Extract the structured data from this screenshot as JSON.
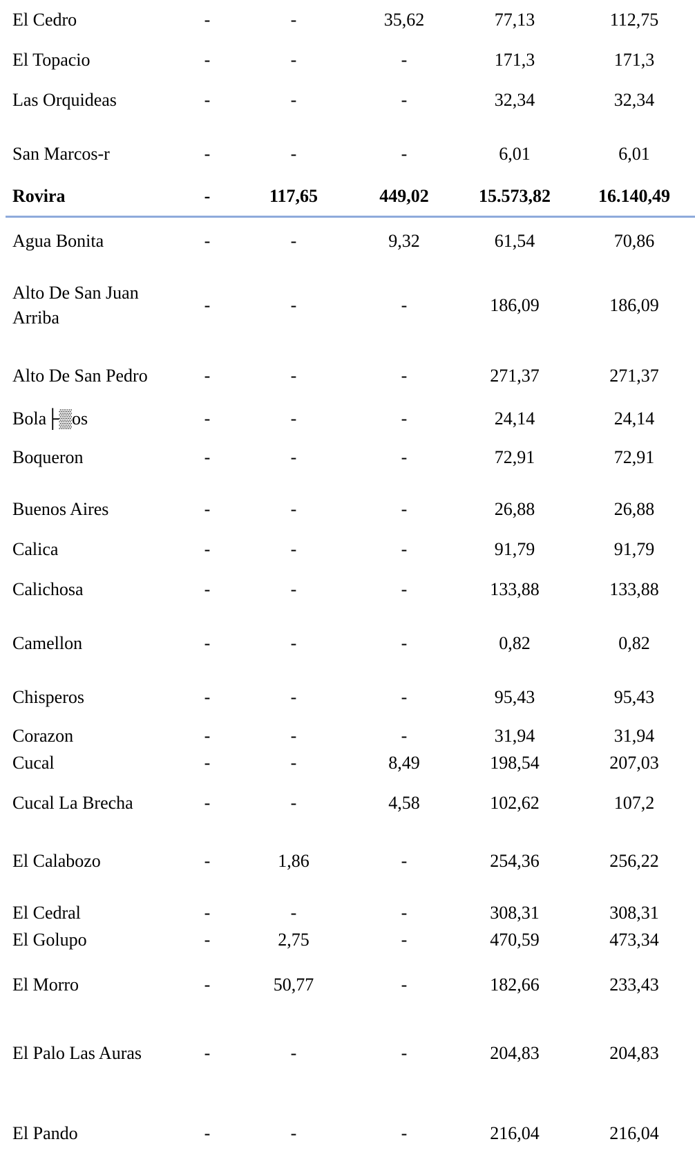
{
  "table": {
    "rows": [
      {
        "name": "El Cedro",
        "values": [
          "-",
          "-",
          "35,62",
          "77,13",
          "112,75"
        ]
      },
      {
        "name": "El Topacio",
        "values": [
          "-",
          "-",
          "-",
          "171,3",
          "171,3"
        ]
      },
      {
        "name": "Las Orquideas",
        "values": [
          "-",
          "-",
          "-",
          "32,34",
          "32,34"
        ]
      },
      {
        "name": "San Marcos-r",
        "values": [
          "-",
          "-",
          "-",
          "6,01",
          "6,01"
        ]
      },
      {
        "name": "Rovira",
        "values": [
          "-",
          "117,65",
          "449,02",
          "15.573,82",
          "16.140,49"
        ],
        "bold": true
      },
      {
        "name": "Agua Bonita",
        "values": [
          "-",
          "-",
          "9,32",
          "61,54",
          "70,86"
        ]
      },
      {
        "name": "Alto De San Juan Arriba",
        "values": [
          "-",
          "-",
          "-",
          "186,09",
          "186,09"
        ]
      },
      {
        "name": "Alto De San Pedro",
        "values": [
          "-",
          "-",
          "-",
          "271,37",
          "271,37"
        ]
      },
      {
        "name": "Bola├▒os",
        "values": [
          "-",
          "-",
          "-",
          "24,14",
          "24,14"
        ]
      },
      {
        "name": "Boqueron",
        "values": [
          "-",
          "-",
          "-",
          "72,91",
          "72,91"
        ]
      },
      {
        "name": "Buenos Aires",
        "values": [
          "-",
          "-",
          "-",
          "26,88",
          "26,88"
        ]
      },
      {
        "name": "Calica",
        "values": [
          "-",
          "-",
          "-",
          "91,79",
          "91,79"
        ]
      },
      {
        "name": "Calichosa",
        "values": [
          "-",
          "-",
          "-",
          "133,88",
          "133,88"
        ]
      },
      {
        "name": "Camellon",
        "values": [
          "-",
          "-",
          "-",
          "0,82",
          "0,82"
        ]
      },
      {
        "name": "Chisperos",
        "values": [
          "-",
          "-",
          "-",
          "95,43",
          "95,43"
        ]
      },
      {
        "name": "Corazon",
        "values": [
          "-",
          "-",
          "-",
          "31,94",
          "31,94"
        ]
      },
      {
        "name": "Cucal",
        "values": [
          "-",
          "-",
          "8,49",
          "198,54",
          "207,03"
        ]
      },
      {
        "name": "Cucal La Brecha",
        "values": [
          "-",
          "-",
          "4,58",
          "102,62",
          "107,2"
        ]
      },
      {
        "name": "El Calabozo",
        "values": [
          "-",
          "1,86",
          "-",
          "254,36",
          "256,22"
        ]
      },
      {
        "name": "El Cedral",
        "values": [
          "-",
          "-",
          "-",
          "308,31",
          "308,31"
        ]
      },
      {
        "name": "El Golupo",
        "values": [
          "-",
          "2,75",
          "-",
          "470,59",
          "473,34"
        ]
      },
      {
        "name": "El Morro",
        "values": [
          "-",
          "50,77",
          "-",
          "182,66",
          "233,43"
        ]
      },
      {
        "name": "El Palo Las Auras",
        "values": [
          "-",
          "-",
          "-",
          "204,83",
          "204,83"
        ]
      },
      {
        "name": "El Pando",
        "values": [
          "-",
          "-",
          "-",
          "216,04",
          "216,04"
        ]
      }
    ]
  }
}
